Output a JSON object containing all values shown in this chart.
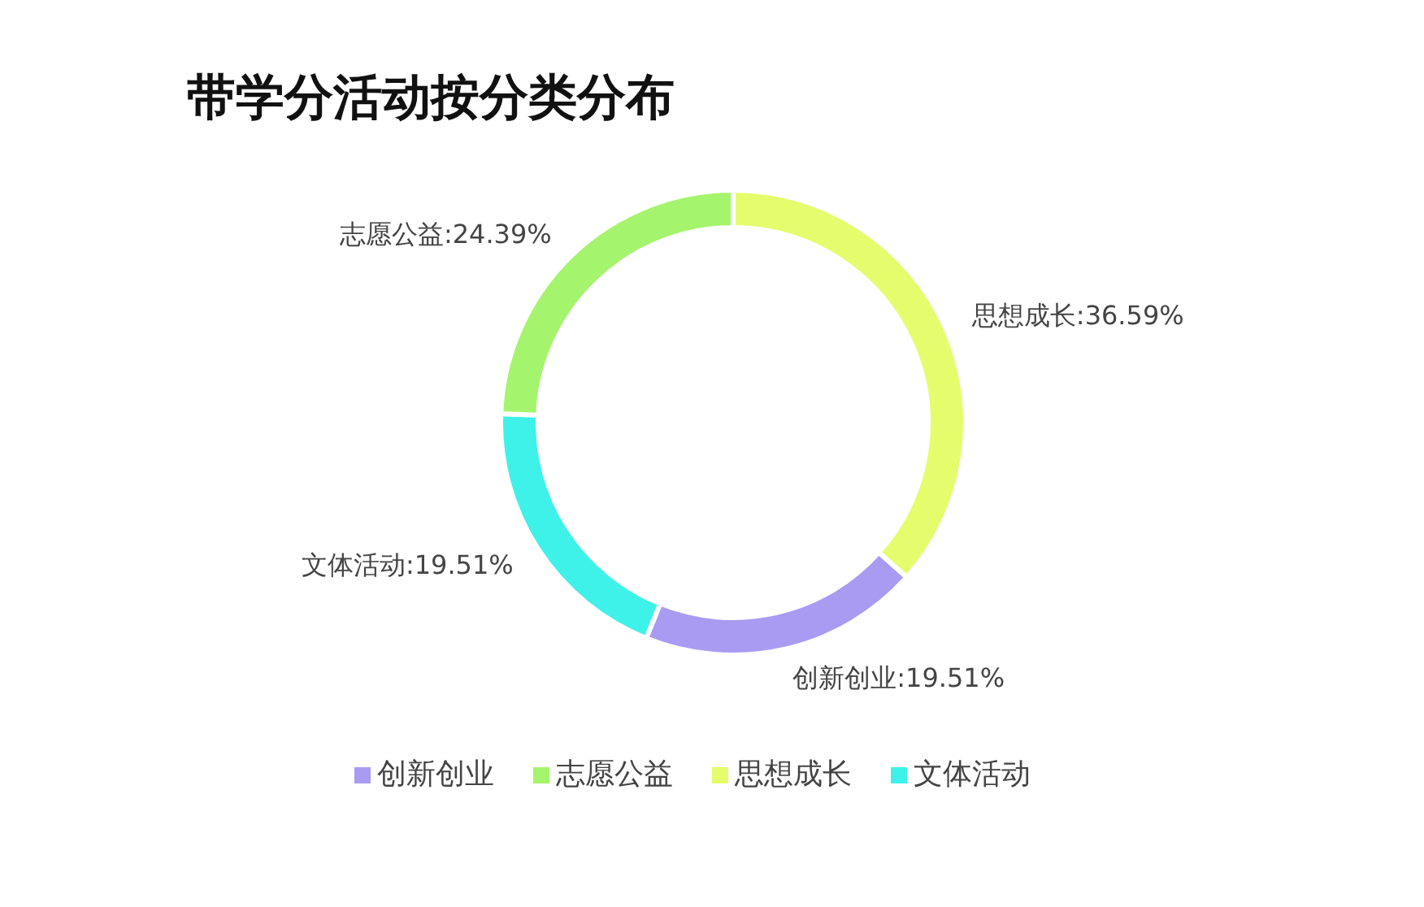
{
  "chart_data": {
    "type": "donut",
    "title": "带学分活动按分类分布",
    "categories": [
      "思想成长",
      "创新创业",
      "文体活动",
      "志愿公益"
    ],
    "values": [
      36.59,
      19.51,
      19.51,
      24.39
    ],
    "colors": [
      "#e5fd6c",
      "#a99bf1",
      "#3ef2e9",
      "#a5f46e"
    ],
    "value_labels": [
      "思想成长:36.59%",
      "创新创业:19.51%",
      "文体活动:19.51%",
      "志愿公益:24.39%"
    ],
    "legend": "bottom"
  }
}
